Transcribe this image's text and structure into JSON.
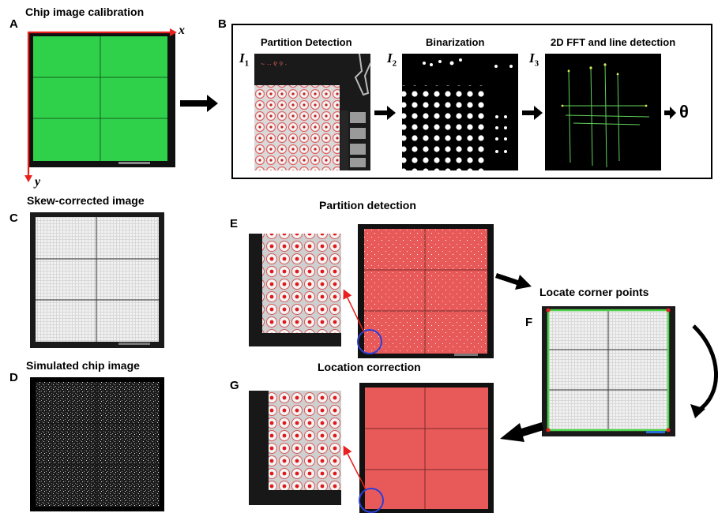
{
  "panel_letters": {
    "A": "A",
    "B": "B",
    "C": "C",
    "D": "D",
    "E": "E",
    "F": "F",
    "G": "G"
  },
  "titles": {
    "a": "Chip image calibration",
    "c": "Skew-corrected image",
    "d": "Simulated chip image",
    "e": "Partition detection",
    "f": "Locate corner points",
    "g": "Location correction"
  },
  "panel_b": {
    "step1": "Partition Detection",
    "step2": "Binarization",
    "step3": "2D FFT and line detection",
    "image_labels": {
      "i1": "I",
      "i1_sub": "1",
      "i2": "I",
      "i2_sub": "2",
      "i3": "I",
      "i3_sub": "3"
    },
    "result": "θ"
  },
  "axes": {
    "x": "x",
    "y": "y"
  },
  "colors": {
    "chip_green": "#2fd14a",
    "chip_red": "#e85a5a",
    "axis_red": "#e8201e",
    "circle_blue": "#2b3fd6",
    "corner_green": "#4ed34a"
  }
}
